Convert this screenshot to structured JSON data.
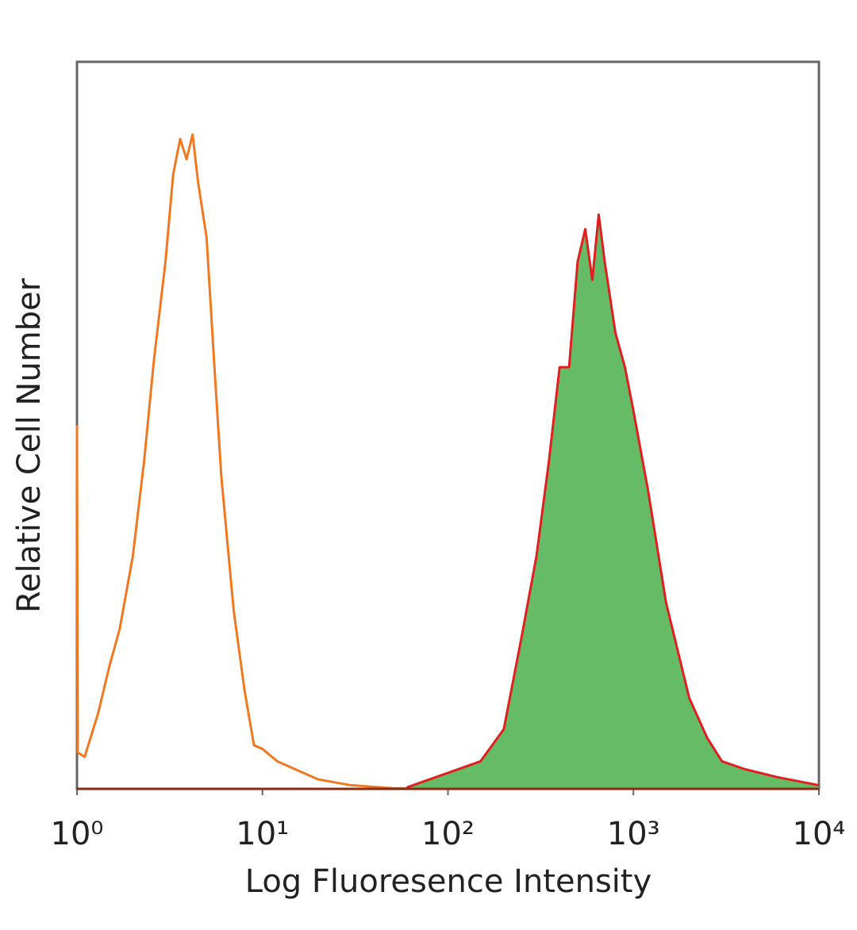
{
  "chart_data": {
    "type": "histogram-overlay",
    "xlabel": "Log Fluoresence Intensity",
    "ylabel": "Relative Cell Number",
    "xscale": "log",
    "xlim": [
      1,
      10000
    ],
    "ylim": [
      0,
      100
    ],
    "xticks": [
      {
        "value": 1,
        "label": "10⁰"
      },
      {
        "value": 10,
        "label": "10¹"
      },
      {
        "value": 100,
        "label": "10²"
      },
      {
        "value": 1000,
        "label": "10³"
      },
      {
        "value": 10000,
        "label": "10⁴"
      }
    ],
    "grid": false,
    "series": [
      {
        "color": "#f07820",
        "filled": false,
        "x": [
          1,
          1.01,
          1.1,
          1.3,
          1.5,
          1.7,
          2,
          2.3,
          2.6,
          3,
          3.3,
          3.6,
          3.9,
          4.2,
          4.5,
          5,
          5.5,
          6,
          7,
          8,
          9,
          10,
          12,
          15,
          20,
          30,
          50,
          100
        ],
        "values": [
          50,
          5,
          4.4,
          10.4,
          17,
          22,
          32,
          45,
          59,
          72.5,
          84.5,
          89.4,
          86.6,
          90,
          83.4,
          75.8,
          58.3,
          43,
          24.5,
          13.6,
          6,
          5.5,
          3.8,
          2.7,
          1.3,
          0.5,
          0.1,
          0
        ]
      },
      {
        "color": "#e02020",
        "fill": "#66bb66",
        "filled": true,
        "x": [
          60,
          100,
          150,
          200,
          250,
          300,
          350,
          400,
          450,
          500,
          550,
          600,
          650,
          700,
          800,
          900,
          1000,
          1200,
          1500,
          2000,
          2500,
          3000,
          4000,
          6000,
          10000
        ],
        "values": [
          0.2,
          2.2,
          3.8,
          8.2,
          21,
          32,
          45,
          58,
          58,
          72.5,
          77,
          70,
          79,
          72.5,
          62.7,
          58,
          52,
          41,
          25.6,
          12.5,
          7,
          3.8,
          2.7,
          1.6,
          0.5
        ]
      }
    ]
  }
}
